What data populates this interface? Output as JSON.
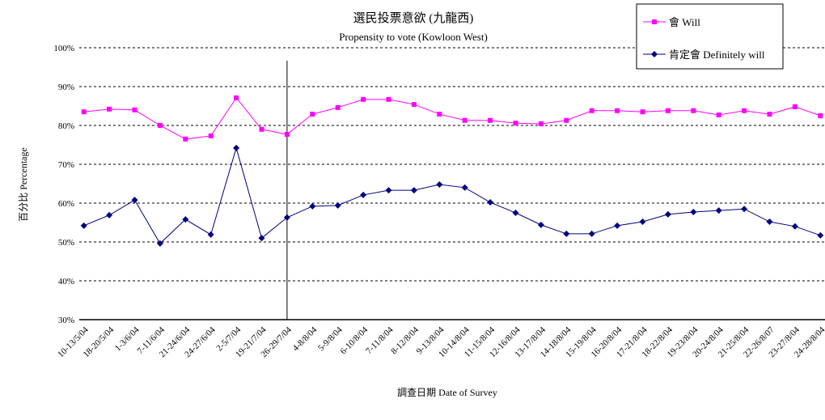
{
  "chart_data": {
    "type": "line",
    "title": "選民投票意欲 (九龍西)",
    "subtitle": "Propensity to vote (Kowloon West)",
    "xlabel": "調查日期 Date of Survey",
    "ylabel": "百分比 Percentage",
    "ylim": [
      30,
      100
    ],
    "yticks": [
      "30%",
      "40%",
      "50%",
      "60%",
      "70%",
      "80%",
      "90%",
      "100%"
    ],
    "grid": "horizontal dashed",
    "legend": "top-right",
    "categories": [
      "10-13/5/04",
      "18-20/5/04",
      "1-3/6/04",
      "7-11/6/04",
      "21-24/6/04",
      "24-27/6/04",
      "2-5/7/04",
      "19-21/7/04",
      "26-29/7/04",
      "4-8/8/04",
      "5-9/8/04",
      "6-10/8/04",
      "7-11/8/04",
      "8-12/8/04",
      "9-13/8/04",
      "10-14/8/04",
      "11-15/8/04",
      "12-16/8/04",
      "13-17/8/04",
      "14-18/8/04",
      "15-19/8/04",
      "16-20/8/04",
      "17-21/8/04",
      "18-22/8/04",
      "19-23/8/04",
      "20-24/8/04",
      "21-25/8/04",
      "22-26/8/07",
      "23-27/8/04",
      "24-28/8/04"
    ],
    "series": [
      {
        "name": "會 Will",
        "color": "#ff00ff",
        "marker": "square",
        "values": [
          83.5,
          84.2,
          84.0,
          80.0,
          76.5,
          77.3,
          87.1,
          79.0,
          77.7,
          82.9,
          84.6,
          86.7,
          86.7,
          85.4,
          82.9,
          81.3,
          81.3,
          80.6,
          80.4,
          81.3,
          83.8,
          83.8,
          83.5,
          83.8,
          83.8,
          82.7,
          83.8,
          82.9,
          84.8,
          82.5
        ]
      },
      {
        "name": "肯定會 Definitely will",
        "color": "#000080",
        "marker": "diamond",
        "values": [
          54.2,
          56.9,
          60.8,
          49.6,
          55.8,
          51.9,
          74.2,
          51.0,
          56.3,
          59.2,
          59.4,
          62.1,
          63.3,
          63.3,
          64.8,
          64.0,
          60.2,
          57.5,
          54.4,
          52.1,
          52.1,
          54.2,
          55.2,
          57.1,
          57.7,
          58.1,
          58.5,
          55.2,
          54.0,
          51.7
        ]
      }
    ],
    "vertical_marker_after_category": "26-29/7/04"
  }
}
